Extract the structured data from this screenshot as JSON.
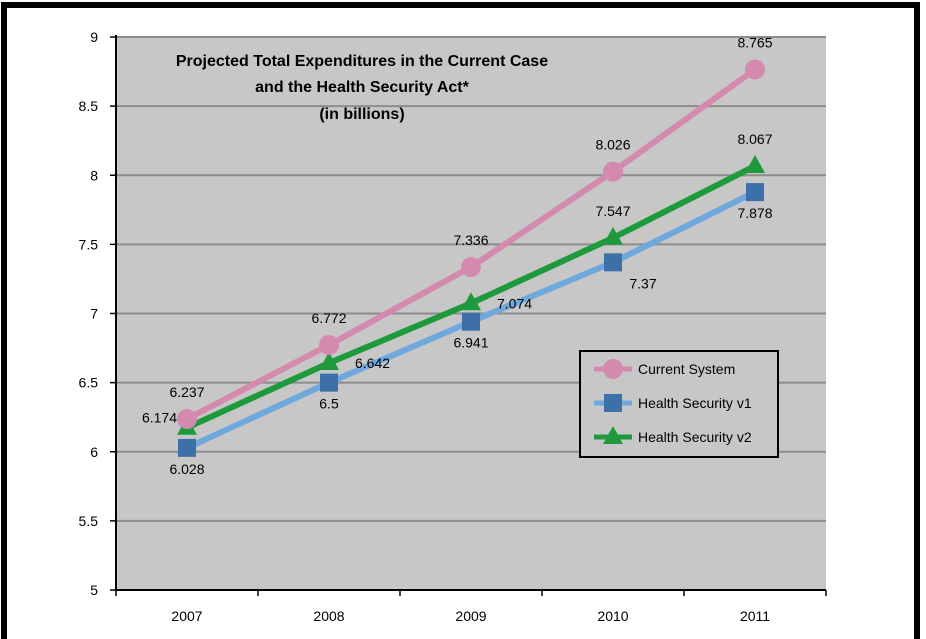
{
  "chart_data": {
    "type": "line",
    "title_lines": [
      "Projected Total Expenditures  in the Current Case",
      "and the Health Security Act*",
      "(in billions)"
    ],
    "categories": [
      "2007",
      "2008",
      "2009",
      "2010",
      "2011"
    ],
    "ylim": [
      5,
      9
    ],
    "yticks": [
      5,
      5.5,
      6,
      6.5,
      7,
      7.5,
      8,
      8.5,
      9
    ],
    "ytick_labels": [
      "5",
      "5.5",
      "6",
      "6.5",
      "7",
      "7.5",
      "8",
      "8.5",
      "9"
    ],
    "grid": true,
    "legend_position": "right-middle",
    "series": [
      {
        "name": "Current System",
        "color": "#d48aae",
        "marker": "circle",
        "values": [
          6.237,
          6.772,
          7.336,
          8.026,
          8.765
        ],
        "labels": [
          "6.237",
          "6.772",
          "7.336",
          "8.026",
          "8.765"
        ],
        "label_pos": [
          "above",
          "above",
          "above",
          "above",
          "above"
        ]
      },
      {
        "name": "Health Security v1",
        "color": "#6fa8dc",
        "marker_color": "#3d6fa8",
        "marker": "square",
        "values": [
          6.028,
          6.5,
          6.941,
          7.37,
          7.878
        ],
        "labels": [
          "6.028",
          "6.5",
          "6.941",
          "7.37",
          "7.878"
        ],
        "label_pos": [
          "below",
          "below",
          "below",
          "below-right",
          "below"
        ]
      },
      {
        "name": "Health Security v2",
        "color": "#1e9a3c",
        "marker": "triangle",
        "values": [
          6.174,
          6.642,
          7.074,
          7.547,
          8.067
        ],
        "labels": [
          "6.174",
          "6.642",
          "7.074",
          "7.547",
          "8.067"
        ],
        "label_pos": [
          "left",
          "right",
          "right",
          "above",
          "above"
        ]
      }
    ],
    "plot_background": "#c7c7c7",
    "grid_color": "#8c8c8c"
  }
}
